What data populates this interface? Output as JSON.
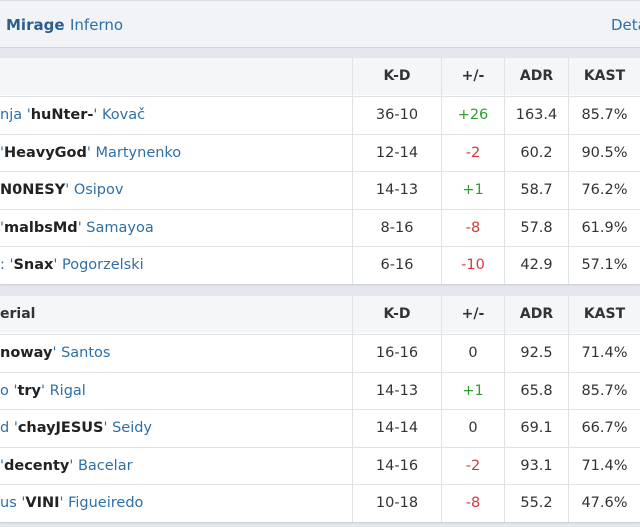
{
  "tabs": {
    "map1": "Mirage",
    "map2": "Inferno",
    "details": "Deta"
  },
  "colors": {
    "positive": "#2e9e2e",
    "negative": "#d23b3b",
    "link": "#2f6fa8"
  },
  "team1": {
    "name": "",
    "headers": [
      "K-D",
      "+/-",
      "ADR",
      "KAST"
    ],
    "players": [
      {
        "prefix": "nja '",
        "nick": "huNter-",
        "suffix": "' Kovač",
        "kd": "36-10",
        "diff": "+26",
        "sign": "pos",
        "adr": "163.4",
        "kast": "85.7%"
      },
      {
        "prefix": "'",
        "nick": "HeavyGod",
        "suffix": "' Martynenko",
        "kd": "12-14",
        "diff": "-2",
        "sign": "neg",
        "adr": "60.2",
        "kast": "90.5%"
      },
      {
        "prefix": "",
        "nick": "N0NESY",
        "suffix": "' Osipov",
        "kd": "14-13",
        "diff": "+1",
        "sign": "pos",
        "adr": "58.7",
        "kast": "76.2%"
      },
      {
        "prefix": "'",
        "nick": "malbsMd",
        "suffix": "' Samayoa",
        "kd": "8-16",
        "diff": "-8",
        "sign": "neg",
        "adr": "57.8",
        "kast": "61.9%"
      },
      {
        "prefix": ": '",
        "nick": "Snax",
        "suffix": "' Pogorzelski",
        "kd": "6-16",
        "diff": "-10",
        "sign": "neg",
        "adr": "42.9",
        "kast": "57.1%"
      }
    ]
  },
  "team2": {
    "name": "erial",
    "headers": [
      "K-D",
      "+/-",
      "ADR",
      "KAST"
    ],
    "players": [
      {
        "prefix": "",
        "nick": "noway",
        "suffix": "' Santos",
        "kd": "16-16",
        "diff": "0",
        "sign": "neu",
        "adr": "92.5",
        "kast": "71.4%"
      },
      {
        "prefix": "o '",
        "nick": "try",
        "suffix": "' Rigal",
        "kd": "14-13",
        "diff": "+1",
        "sign": "pos",
        "adr": "65.8",
        "kast": "85.7%"
      },
      {
        "prefix": "d '",
        "nick": "chayJESUS",
        "suffix": "' Seidy",
        "kd": "14-14",
        "diff": "0",
        "sign": "neu",
        "adr": "69.1",
        "kast": "66.7%"
      },
      {
        "prefix": "'",
        "nick": "decenty",
        "suffix": "' Bacelar",
        "kd": "14-16",
        "diff": "-2",
        "sign": "neg",
        "adr": "93.1",
        "kast": "71.4%"
      },
      {
        "prefix": "us '",
        "nick": "VINI",
        "suffix": "' Figueiredo",
        "kd": "10-18",
        "diff": "-8",
        "sign": "neg",
        "adr": "55.2",
        "kast": "47.6%"
      }
    ]
  }
}
